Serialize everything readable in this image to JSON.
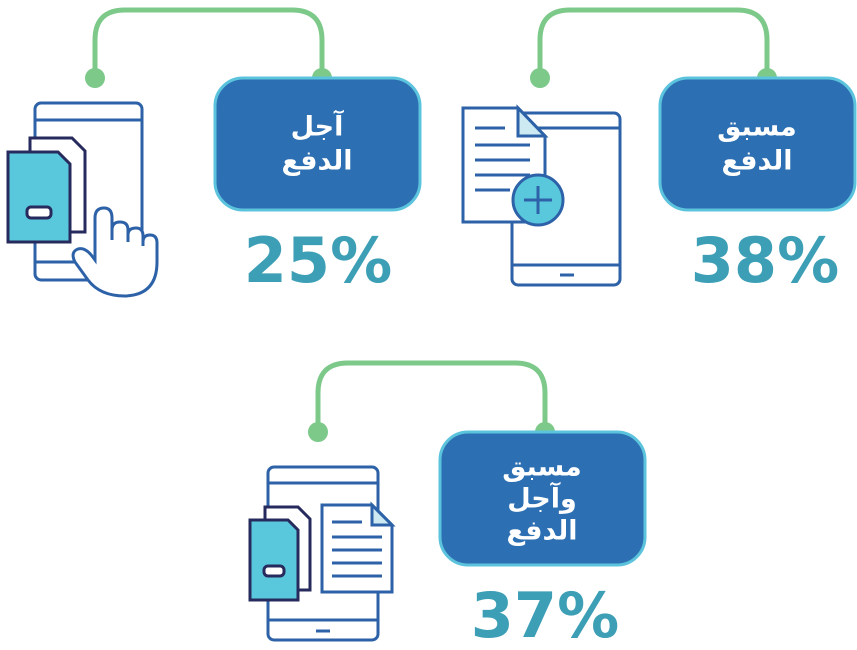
{
  "items": [
    {
      "label_lines": [
        "مسبق",
        "الدفع"
      ],
      "percent": "38%"
    },
    {
      "label_lines": [
        "آجل",
        "الدفع"
      ],
      "percent": "25%"
    },
    {
      "label_lines": [
        "مسبق",
        "وآجل",
        "الدفع"
      ],
      "percent": "37%"
    }
  ]
}
